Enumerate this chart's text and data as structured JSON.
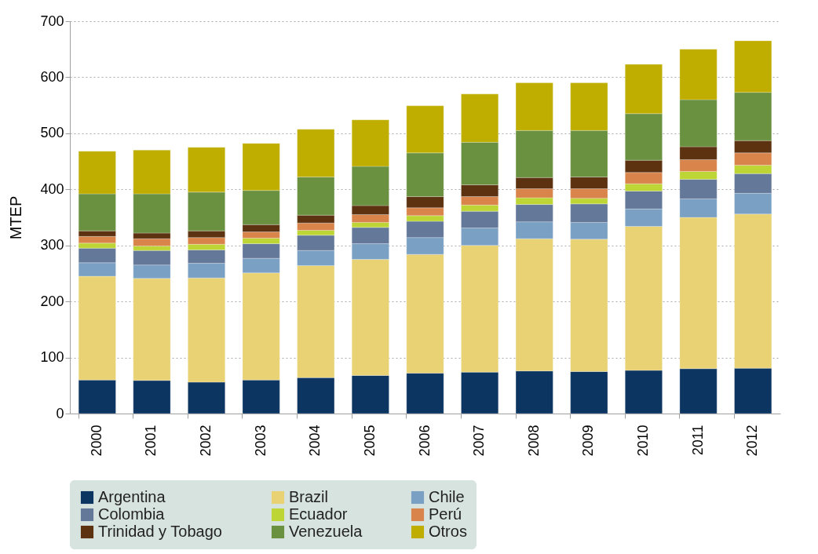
{
  "chart_data": {
    "type": "bar",
    "stacked": true,
    "ylabel": "MTEP",
    "categories": [
      "2000",
      "2001",
      "2002",
      "2003",
      "2004",
      "2005",
      "2006",
      "2007",
      "2008",
      "2009",
      "2010",
      "2011",
      "2012"
    ],
    "ylim": [
      0,
      700
    ],
    "yticks": [
      0,
      100,
      200,
      300,
      400,
      500,
      600,
      700
    ],
    "grid": "y",
    "legend": "bottom",
    "series": [
      {
        "name": "Argentina",
        "color": "#0d3561",
        "values": [
          60,
          59,
          56,
          60,
          64,
          68,
          72,
          74,
          76,
          75,
          77,
          80,
          81
        ]
      },
      {
        "name": "Brazil",
        "color": "#e8d274",
        "values": [
          185,
          182,
          186,
          191,
          200,
          207,
          212,
          226,
          236,
          236,
          257,
          270,
          275
        ]
      },
      {
        "name": "Chile",
        "color": "#7aa0c4",
        "values": [
          24,
          24,
          26,
          26,
          27,
          28,
          30,
          31,
          30,
          30,
          31,
          33,
          37
        ]
      },
      {
        "name": "Colombia",
        "color": "#647899",
        "values": [
          26,
          26,
          24,
          26,
          27,
          29,
          29,
          30,
          31,
          33,
          32,
          35,
          35
        ]
      },
      {
        "name": "Ecuador",
        "color": "#bdd535",
        "values": [
          9,
          8,
          10,
          10,
          9,
          9,
          10,
          11,
          12,
          10,
          13,
          14,
          15
        ]
      },
      {
        "name": "Perú",
        "color": "#d9844a",
        "values": [
          12,
          13,
          12,
          11,
          13,
          14,
          14,
          15,
          16,
          17,
          20,
          21,
          22
        ]
      },
      {
        "name": "Trinidad y Tobago",
        "color": "#5c3210",
        "values": [
          10,
          10,
          12,
          13,
          14,
          16,
          20,
          21,
          20,
          21,
          22,
          23,
          22
        ]
      },
      {
        "name": "Venezuela",
        "color": "#6a9140",
        "values": [
          66,
          70,
          69,
          61,
          68,
          70,
          78,
          76,
          84,
          83,
          83,
          84,
          86
        ]
      },
      {
        "name": "Otros",
        "color": "#bfae00",
        "values": [
          76,
          78,
          80,
          84,
          85,
          83,
          84,
          86,
          85,
          85,
          88,
          90,
          92
        ]
      }
    ]
  }
}
